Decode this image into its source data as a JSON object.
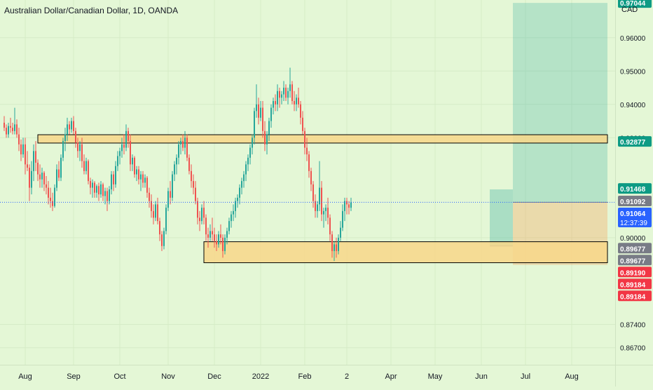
{
  "header": {
    "title": "Australian Dollar/Canadian Dollar, 1D, OANDA"
  },
  "price_axis": {
    "currency": "CAD"
  },
  "countdown": "12:37:39",
  "colors": {
    "up": "#26a69a",
    "down": "#ef5350",
    "bg": "#e4f7d6",
    "zone": "#f8d78a",
    "target": "#0d9b84",
    "stop": "#f23645",
    "current": "#2962ff",
    "grey": "#787b86"
  },
  "chart_data": {
    "type": "candlestick",
    "title": "Australian Dollar/Canadian Dollar, 1D, OANDA",
    "ylim": [
      0.86,
      0.975
    ],
    "y_ticks": [
      {
        "v": 0.96,
        "label": "0.96000"
      },
      {
        "v": 0.95,
        "label": "0.95000"
      },
      {
        "v": 0.94,
        "label": "0.94000"
      },
      {
        "v": 0.93,
        "label": "0.93000"
      },
      {
        "v": 0.9,
        "label": "0.90000"
      },
      {
        "v": 0.874,
        "label": "0.87400"
      },
      {
        "v": 0.867,
        "label": "0.86700"
      }
    ],
    "x_ticks": [
      {
        "i": 10,
        "label": "Aug"
      },
      {
        "i": 33,
        "label": "Sep"
      },
      {
        "i": 55,
        "label": "Oct"
      },
      {
        "i": 78,
        "label": "Nov"
      },
      {
        "i": 100,
        "label": "Dec"
      },
      {
        "i": 122,
        "label": "2022"
      },
      {
        "i": 143,
        "label": "Feb"
      },
      {
        "i": 163,
        "label": "2"
      },
      {
        "i": 184,
        "label": "Apr"
      },
      {
        "i": 205,
        "label": "May"
      },
      {
        "i": 227,
        "label": "Jun"
      },
      {
        "i": 248,
        "label": "Jul"
      },
      {
        "i": 270,
        "label": "Aug"
      }
    ],
    "price_badges": [
      {
        "v": 0.97044,
        "label": "0.97044",
        "color": "#0d9b84"
      },
      {
        "v": 0.92877,
        "label": "0.92877",
        "color": "#0d9b84"
      },
      {
        "v": 0.91468,
        "label": "0.91468",
        "color": "#0d9b84"
      },
      {
        "v": 0.91092,
        "label": "0.91092",
        "color": "#787b86"
      },
      {
        "v": 0.91064,
        "label": "0.91064",
        "color": "#2962ff"
      },
      {
        "v": 0.89677,
        "label": "0.89677",
        "color": "#787b86"
      },
      {
        "v": 0.89677,
        "label": "0.89677",
        "color": "#787b86"
      },
      {
        "v": 0.8919,
        "label": "0.89190",
        "color": "#f23645"
      },
      {
        "v": 0.89184,
        "label": "0.89184",
        "color": "#f23645"
      },
      {
        "v": 0.89184,
        "label": "0.89184",
        "color": "#f23645"
      }
    ],
    "zones": [
      {
        "x0": 16,
        "x1": 287,
        "y0": 0.9284,
        "y1": 0.9309
      },
      {
        "x0": 95,
        "x1": 287,
        "y0": 0.8925,
        "y1": 0.8988
      }
    ],
    "position": {
      "x0": 242,
      "x1": 287,
      "entry": 0.91064,
      "target": 0.97044,
      "stop": 0.89184
    },
    "position2": {
      "x0": 231,
      "x1": 242,
      "entry": 0.8975,
      "target": 0.9145
    },
    "current_price": 0.91064,
    "candles": [
      [
        0.9345,
        0.9365,
        0.932,
        0.933
      ],
      [
        0.933,
        0.934,
        0.93,
        0.931
      ],
      [
        0.931,
        0.9345,
        0.93,
        0.9335
      ],
      [
        0.9335,
        0.936,
        0.9315,
        0.933
      ],
      [
        0.933,
        0.9345,
        0.931,
        0.932
      ],
      [
        0.932,
        0.939,
        0.931,
        0.934
      ],
      [
        0.934,
        0.9355,
        0.93,
        0.931
      ],
      [
        0.931,
        0.933,
        0.926,
        0.928
      ],
      [
        0.928,
        0.9295,
        0.923,
        0.925
      ],
      [
        0.925,
        0.93,
        0.924,
        0.928
      ],
      [
        0.928,
        0.93,
        0.919,
        0.922
      ],
      [
        0.922,
        0.926,
        0.92,
        0.921
      ],
      [
        0.921,
        0.922,
        0.911,
        0.915
      ],
      [
        0.915,
        0.923,
        0.913,
        0.92
      ],
      [
        0.92,
        0.928,
        0.917,
        0.926
      ],
      [
        0.926,
        0.929,
        0.92,
        0.9225
      ],
      [
        0.9225,
        0.9235,
        0.917,
        0.919
      ],
      [
        0.919,
        0.922,
        0.915,
        0.9175
      ],
      [
        0.9175,
        0.921,
        0.915,
        0.9195
      ],
      [
        0.9195,
        0.92,
        0.914,
        0.916
      ],
      [
        0.916,
        0.9185,
        0.913,
        0.915
      ],
      [
        0.915,
        0.917,
        0.91,
        0.912
      ],
      [
        0.912,
        0.915,
        0.909,
        0.911
      ],
      [
        0.911,
        0.9135,
        0.908,
        0.9095
      ],
      [
        0.9095,
        0.916,
        0.909,
        0.915
      ],
      [
        0.915,
        0.922,
        0.914,
        0.9205
      ],
      [
        0.9205,
        0.923,
        0.917,
        0.918
      ],
      [
        0.918,
        0.925,
        0.917,
        0.924
      ],
      [
        0.924,
        0.93,
        0.923,
        0.929
      ],
      [
        0.929,
        0.933,
        0.926,
        0.931
      ],
      [
        0.931,
        0.936,
        0.929,
        0.934
      ],
      [
        0.934,
        0.935,
        0.931,
        0.9325
      ],
      [
        0.9325,
        0.936,
        0.9315,
        0.935
      ],
      [
        0.935,
        0.9365,
        0.931,
        0.932
      ],
      [
        0.932,
        0.933,
        0.927,
        0.9285
      ],
      [
        0.9285,
        0.93,
        0.924,
        0.926
      ],
      [
        0.926,
        0.929,
        0.923,
        0.928
      ],
      [
        0.928,
        0.93,
        0.921,
        0.923
      ],
      [
        0.923,
        0.925,
        0.919,
        0.92
      ],
      [
        0.92,
        0.924,
        0.919,
        0.923
      ],
      [
        0.923,
        0.9235,
        0.916,
        0.917
      ],
      [
        0.917,
        0.918,
        0.913,
        0.915
      ],
      [
        0.915,
        0.9175,
        0.912,
        0.9165
      ],
      [
        0.9165,
        0.917,
        0.912,
        0.9135
      ],
      [
        0.9135,
        0.916,
        0.912,
        0.9155
      ],
      [
        0.9155,
        0.9165,
        0.911,
        0.913
      ],
      [
        0.913,
        0.917,
        0.912,
        0.916
      ],
      [
        0.916,
        0.9165,
        0.911,
        0.9125
      ],
      [
        0.9125,
        0.915,
        0.91,
        0.914
      ],
      [
        0.914,
        0.915,
        0.908,
        0.911
      ],
      [
        0.911,
        0.9155,
        0.91,
        0.9145
      ],
      [
        0.9145,
        0.92,
        0.913,
        0.919
      ],
      [
        0.919,
        0.92,
        0.914,
        0.916
      ],
      [
        0.916,
        0.923,
        0.915,
        0.9215
      ],
      [
        0.9215,
        0.926,
        0.92,
        0.9245
      ],
      [
        0.9245,
        0.927,
        0.922,
        0.926
      ],
      [
        0.926,
        0.93,
        0.924,
        0.928
      ],
      [
        0.928,
        0.931,
        0.925,
        0.927
      ],
      [
        0.927,
        0.934,
        0.926,
        0.932
      ],
      [
        0.932,
        0.933,
        0.927,
        0.929
      ],
      [
        0.929,
        0.931,
        0.92,
        0.922
      ],
      [
        0.922,
        0.925,
        0.92,
        0.924
      ],
      [
        0.924,
        0.9245,
        0.918,
        0.919
      ],
      [
        0.919,
        0.9215,
        0.917,
        0.9205
      ],
      [
        0.9205,
        0.9215,
        0.916,
        0.9175
      ],
      [
        0.9175,
        0.92,
        0.914,
        0.919
      ],
      [
        0.919,
        0.92,
        0.915,
        0.9165
      ],
      [
        0.9165,
        0.919,
        0.915,
        0.918
      ],
      [
        0.918,
        0.9185,
        0.912,
        0.9135
      ],
      [
        0.9135,
        0.915,
        0.909,
        0.911
      ],
      [
        0.911,
        0.913,
        0.906,
        0.908
      ],
      [
        0.908,
        0.91,
        0.904,
        0.906
      ],
      [
        0.906,
        0.911,
        0.905,
        0.91
      ],
      [
        0.91,
        0.912,
        0.904,
        0.905
      ],
      [
        0.905,
        0.906,
        0.899,
        0.901
      ],
      [
        0.901,
        0.902,
        0.896,
        0.8975
      ],
      [
        0.8975,
        0.903,
        0.8965,
        0.902
      ],
      [
        0.902,
        0.91,
        0.901,
        0.909
      ],
      [
        0.909,
        0.915,
        0.908,
        0.914
      ],
      [
        0.914,
        0.917,
        0.91,
        0.912
      ],
      [
        0.912,
        0.92,
        0.911,
        0.919
      ],
      [
        0.919,
        0.923,
        0.917,
        0.922
      ],
      [
        0.922,
        0.925,
        0.919,
        0.924
      ],
      [
        0.924,
        0.929,
        0.922,
        0.928
      ],
      [
        0.928,
        0.93,
        0.925,
        0.929
      ],
      [
        0.929,
        0.931,
        0.926,
        0.927
      ],
      [
        0.927,
        0.932,
        0.925,
        0.93
      ],
      [
        0.93,
        0.931,
        0.923,
        0.924
      ],
      [
        0.924,
        0.925,
        0.919,
        0.92
      ],
      [
        0.92,
        0.922,
        0.915,
        0.917
      ],
      [
        0.917,
        0.919,
        0.913,
        0.915
      ],
      [
        0.915,
        0.917,
        0.91,
        0.911
      ],
      [
        0.911,
        0.912,
        0.904,
        0.906
      ],
      [
        0.906,
        0.908,
        0.902,
        0.905
      ],
      [
        0.905,
        0.91,
        0.904,
        0.909
      ],
      [
        0.909,
        0.911,
        0.904,
        0.906
      ],
      [
        0.906,
        0.907,
        0.899,
        0.901
      ],
      [
        0.901,
        0.903,
        0.897,
        0.9
      ],
      [
        0.9,
        0.904,
        0.899,
        0.902
      ],
      [
        0.902,
        0.906,
        0.899,
        0.901
      ],
      [
        0.901,
        0.903,
        0.897,
        0.899
      ],
      [
        0.899,
        0.901,
        0.896,
        0.898
      ],
      [
        0.898,
        0.902,
        0.897,
        0.901
      ],
      [
        0.901,
        0.904,
        0.898,
        0.9
      ],
      [
        0.9,
        0.901,
        0.894,
        0.896
      ],
      [
        0.896,
        0.901,
        0.895,
        0.9
      ],
      [
        0.9,
        0.903,
        0.898,
        0.902
      ],
      [
        0.902,
        0.906,
        0.901,
        0.905
      ],
      [
        0.905,
        0.908,
        0.903,
        0.907
      ],
      [
        0.907,
        0.91,
        0.905,
        0.908
      ],
      [
        0.908,
        0.912,
        0.906,
        0.911
      ],
      [
        0.911,
        0.913,
        0.909,
        0.912
      ],
      [
        0.912,
        0.916,
        0.91,
        0.915
      ],
      [
        0.915,
        0.918,
        0.913,
        0.917
      ],
      [
        0.917,
        0.92,
        0.915,
        0.919
      ],
      [
        0.919,
        0.923,
        0.917,
        0.922
      ],
      [
        0.922,
        0.925,
        0.92,
        0.924
      ],
      [
        0.924,
        0.928,
        0.922,
        0.927
      ],
      [
        0.927,
        0.931,
        0.925,
        0.93
      ],
      [
        0.93,
        0.939,
        0.928,
        0.938
      ],
      [
        0.938,
        0.946,
        0.936,
        0.94
      ],
      [
        0.94,
        0.942,
        0.934,
        0.936
      ],
      [
        0.936,
        0.941,
        0.935,
        0.939
      ],
      [
        0.939,
        0.941,
        0.93,
        0.932
      ],
      [
        0.932,
        0.935,
        0.926,
        0.928
      ],
      [
        0.928,
        0.932,
        0.925,
        0.931
      ],
      [
        0.931,
        0.936,
        0.929,
        0.935
      ],
      [
        0.935,
        0.94,
        0.933,
        0.939
      ],
      [
        0.939,
        0.942,
        0.937,
        0.941
      ],
      [
        0.941,
        0.943,
        0.938,
        0.94
      ],
      [
        0.94,
        0.946,
        0.938,
        0.944
      ],
      [
        0.944,
        0.945,
        0.939,
        0.942
      ],
      [
        0.942,
        0.944,
        0.94,
        0.943
      ],
      [
        0.943,
        0.947,
        0.941,
        0.945
      ],
      [
        0.945,
        0.946,
        0.941,
        0.942
      ],
      [
        0.942,
        0.945,
        0.94,
        0.944
      ],
      [
        0.944,
        0.951,
        0.942,
        0.946
      ],
      [
        0.946,
        0.947,
        0.94,
        0.941
      ],
      [
        0.941,
        0.944,
        0.938,
        0.94
      ],
      [
        0.94,
        0.943,
        0.938,
        0.942
      ],
      [
        0.942,
        0.945,
        0.939,
        0.94
      ],
      [
        0.94,
        0.941,
        0.934,
        0.936
      ],
      [
        0.936,
        0.938,
        0.931,
        0.932
      ],
      [
        0.932,
        0.933,
        0.925,
        0.927
      ],
      [
        0.927,
        0.93,
        0.923,
        0.925
      ],
      [
        0.925,
        0.926,
        0.918,
        0.92
      ],
      [
        0.92,
        0.921,
        0.914,
        0.916
      ],
      [
        0.916,
        0.917,
        0.909,
        0.911
      ],
      [
        0.911,
        0.913,
        0.906,
        0.908
      ],
      [
        0.908,
        0.911,
        0.906,
        0.91
      ],
      [
        0.91,
        0.923,
        0.908,
        0.915
      ],
      [
        0.915,
        0.917,
        0.905,
        0.907
      ],
      [
        0.907,
        0.909,
        0.903,
        0.908
      ],
      [
        0.908,
        0.91,
        0.905,
        0.909
      ],
      [
        0.909,
        0.912,
        0.904,
        0.906
      ],
      [
        0.906,
        0.907,
        0.899,
        0.901
      ],
      [
        0.901,
        0.902,
        0.894,
        0.896
      ],
      [
        0.896,
        0.899,
        0.893,
        0.898
      ],
      [
        0.898,
        0.9,
        0.894,
        0.896
      ],
      [
        0.896,
        0.901,
        0.895,
        0.9
      ],
      [
        0.9,
        0.905,
        0.899,
        0.903
      ],
      [
        0.903,
        0.91,
        0.902,
        0.908
      ],
      [
        0.908,
        0.912,
        0.905,
        0.911
      ],
      [
        0.911,
        0.912,
        0.907,
        0.91
      ],
      [
        0.91,
        0.911,
        0.907,
        0.909
      ],
      [
        0.909,
        0.912,
        0.908,
        0.9106
      ]
    ]
  }
}
